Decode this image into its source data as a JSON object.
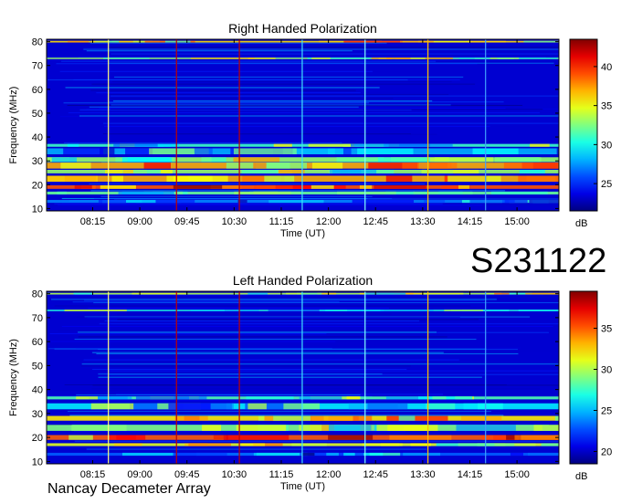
{
  "observation_id": "S231122",
  "footer": "Nancay Decameter Array",
  "chart_data": [
    {
      "type": "heatmap",
      "title": "Right Handed Polarization",
      "xlabel": "Time (UT)",
      "ylabel": "Frequency (MHz)",
      "x_ticks": [
        "08:15",
        "09:00",
        "09:45",
        "10:30",
        "11:15",
        "12:00",
        "12:45",
        "13:30",
        "14:15",
        "15:00"
      ],
      "x_range": [
        "07:31",
        "15:40"
      ],
      "y_ticks": [
        10,
        20,
        30,
        40,
        50,
        60,
        70,
        80
      ],
      "y_range": [
        9,
        81
      ],
      "colorbar": {
        "label": "dB",
        "ticks": [
          25,
          30,
          35,
          40
        ],
        "range": [
          21.5,
          43.5
        ]
      },
      "colormap": "jet",
      "bands": [
        {
          "f": 80.0,
          "w": 0.7,
          "v": 36
        },
        {
          "f": 73.0,
          "w": 0.6,
          "v": 33
        },
        {
          "f": 36.5,
          "w": 1.2,
          "v": 31
        },
        {
          "f": 34.0,
          "w": 2.5,
          "v": 28
        },
        {
          "f": 30.5,
          "w": 2.0,
          "v": 33
        },
        {
          "f": 28.0,
          "w": 2.5,
          "v": 37
        },
        {
          "f": 25.5,
          "w": 1.5,
          "v": 33
        },
        {
          "f": 22.5,
          "w": 2.5,
          "v": 37
        },
        {
          "f": 19.0,
          "w": 1.5,
          "v": 39
        },
        {
          "f": 16.5,
          "w": 1.2,
          "v": 32
        },
        {
          "f": 13.0,
          "w": 1.2,
          "v": 27
        }
      ],
      "vlines": [
        {
          "t": "08:30",
          "color": "#ffff80"
        },
        {
          "t": "09:35",
          "color": "#c00000"
        },
        {
          "t": "10:35",
          "color": "#c00000"
        },
        {
          "t": "11:35",
          "color": "#40e0ff"
        },
        {
          "t": "12:35",
          "color": "#80ffff"
        },
        {
          "t": "13:35",
          "color": "#ffc000"
        },
        {
          "t": "14:30",
          "color": "#40a0ff"
        }
      ]
    },
    {
      "type": "heatmap",
      "title": "Left Handed Polarization",
      "xlabel": "Time (UT)",
      "ylabel": "Frequency (MHz)",
      "x_ticks": [
        "08:15",
        "09:00",
        "09:45",
        "10:30",
        "11:15",
        "12:00",
        "12:45",
        "13:30",
        "14:15",
        "15:00"
      ],
      "x_range": [
        "07:31",
        "15:40"
      ],
      "y_ticks": [
        10,
        20,
        30,
        40,
        50,
        60,
        70,
        80
      ],
      "y_range": [
        9,
        81
      ],
      "colorbar": {
        "label": "dB",
        "ticks": [
          20,
          25,
          30,
          35
        ],
        "range": [
          18.5,
          39.5
        ]
      },
      "colormap": "jet",
      "bands": [
        {
          "f": 80.0,
          "w": 0.7,
          "v": 30
        },
        {
          "f": 73.0,
          "w": 0.6,
          "v": 27
        },
        {
          "f": 36.5,
          "w": 1.2,
          "v": 28
        },
        {
          "f": 33.0,
          "w": 2.5,
          "v": 26
        },
        {
          "f": 28.0,
          "w": 2.0,
          "v": 32
        },
        {
          "f": 24.0,
          "w": 2.5,
          "v": 29
        },
        {
          "f": 20.0,
          "w": 2.0,
          "v": 35
        },
        {
          "f": 17.0,
          "w": 1.2,
          "v": 31
        },
        {
          "f": 13.0,
          "w": 1.2,
          "v": 23
        }
      ],
      "vlines": [
        {
          "t": "08:30",
          "color": "#ffff80"
        },
        {
          "t": "09:35",
          "color": "#c00000"
        },
        {
          "t": "10:35",
          "color": "#c00000"
        },
        {
          "t": "11:35",
          "color": "#40e0ff"
        },
        {
          "t": "12:35",
          "color": "#80ffff"
        },
        {
          "t": "13:35",
          "color": "#ffc000"
        },
        {
          "t": "14:30",
          "color": "#40a0ff"
        }
      ]
    }
  ]
}
